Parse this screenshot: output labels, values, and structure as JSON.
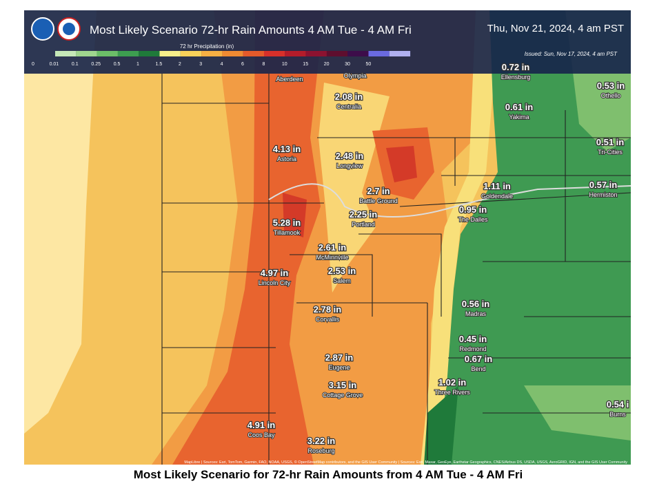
{
  "header": {
    "title": "Most Likely Scenario 72-hr Rain Amounts 4 AM Tue - 4 AM Fri",
    "date": "Thu, Nov 21, 2024, 4 am PST",
    "issued": "Issued: Sun, Nov 17, 2024, 4 am PST"
  },
  "legend": {
    "title": "72 hr Precipitation (in)",
    "ticks": [
      "0",
      "0.01",
      "0.1",
      "0.25",
      "0.5",
      "1",
      "1.5",
      "2",
      "3",
      "4",
      "6",
      "8",
      "10",
      "15",
      "20",
      "30",
      "50"
    ],
    "colors": [
      "#c5e8b8",
      "#9fd68e",
      "#6cbf68",
      "#3d9e50",
      "#1f7a3a",
      "#f7f08a",
      "#f8d25a",
      "#f6b043",
      "#f08a32",
      "#e55a2a",
      "#d7302a",
      "#b41c2a",
      "#8c1230",
      "#5e0e2e",
      "#3d0d4a",
      "#6a6ae0",
      "#b0b0f0"
    ]
  },
  "map": {
    "cities": [
      {
        "name": "Aberdeen"
      },
      {
        "name": "Olympia"
      },
      {
        "name": "Ellensburg",
        "amount": "0.72 in"
      },
      {
        "name": "Othello",
        "amount": "0.53 in"
      },
      {
        "name": "Yakima",
        "amount": "0.61 in"
      },
      {
        "name": "Tri-Cities",
        "amount": "0.51 in"
      },
      {
        "name": "Centralia",
        "amount": "2.08 in"
      },
      {
        "name": "Astoria",
        "amount": "4.13 in"
      },
      {
        "name": "Longview",
        "amount": "2.48 in"
      },
      {
        "name": "Battle Ground",
        "amount": "2.7 in"
      },
      {
        "name": "Goldendale",
        "amount": "1.11 in"
      },
      {
        "name": "Hermiston",
        "amount": "0.57 in"
      },
      {
        "name": "Tillamook",
        "amount": "5.28 in"
      },
      {
        "name": "Portland",
        "amount": "2.25 in"
      },
      {
        "name": "The Dalles",
        "amount": "0.95 in"
      },
      {
        "name": "McMinnville",
        "amount": "2.61 in"
      },
      {
        "name": "Salem",
        "amount": "2.53 in"
      },
      {
        "name": "Lincoln City",
        "amount": "4.97 in"
      },
      {
        "name": "Corvallis",
        "amount": "2.78 in"
      },
      {
        "name": "Madras",
        "amount": "0.56 in"
      },
      {
        "name": "Redmond",
        "amount": "0.45 in"
      },
      {
        "name": "Bend",
        "amount": "0.67 in"
      },
      {
        "name": "Eugene",
        "amount": "2.87 in"
      },
      {
        "name": "Three Rivers",
        "amount": "1.02 in"
      },
      {
        "name": "Cottage Grove",
        "amount": "3.15 in"
      },
      {
        "name": "Coos Bay",
        "amount": "4.91 in"
      },
      {
        "name": "Roseburg",
        "amount": "3.22 in"
      },
      {
        "name": "Burns",
        "amount": "0.54 i"
      }
    ]
  },
  "attribution": "MapLibre | Sources: Esri, TomTom, Garmin, FAO, NOAA, USGS, © OpenStreetMap contributors, and the GIS User Community | Sources: Esri, Maxar, GeoEye, Earthstar Geographics, CNES/Airbus DS, USDA, USGS, AeroGRID, IGN, and the GIS User Community",
  "caption": "Most Likely Scenario for 72-hr Rain Amounts from 4 AM Tue - 4 AM Fri"
}
